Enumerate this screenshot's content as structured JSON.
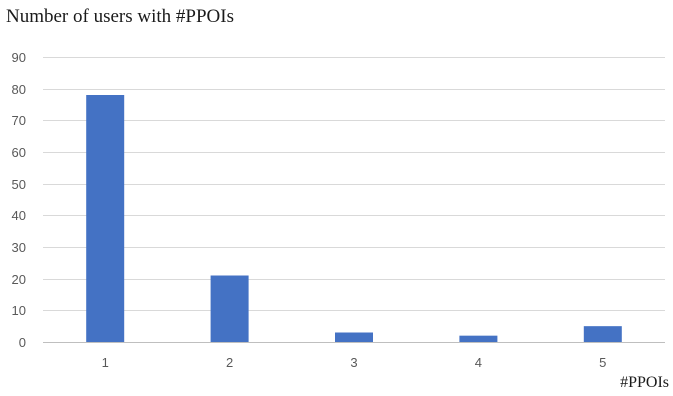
{
  "chart_data": {
    "type": "bar",
    "title": "Number of users with #PPOIs",
    "xlabel": "#PPOIs",
    "ylabel": "",
    "categories": [
      "1",
      "2",
      "3",
      "4",
      "5"
    ],
    "values": [
      78,
      21,
      3,
      2,
      5
    ],
    "ylim": [
      0,
      90
    ],
    "yticks": [
      "0",
      "10",
      "20",
      "30",
      "40",
      "50",
      "60",
      "70",
      "80",
      "90"
    ],
    "grid": true,
    "legend": "none",
    "bar_color": "#4472c4"
  }
}
